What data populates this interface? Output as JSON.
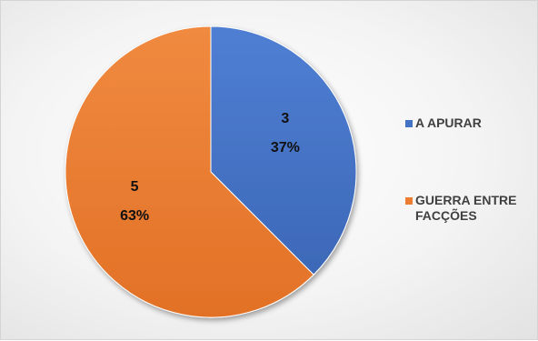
{
  "chart_data": {
    "type": "pie",
    "title": "",
    "categories": [
      "A APURAR",
      "GUERRA ENTRE FACÇÕES"
    ],
    "values": [
      3,
      5
    ],
    "labels": [
      {
        "value": "3",
        "percent": "37%"
      },
      {
        "value": "5",
        "percent": "63%"
      }
    ],
    "colors": [
      "#4472c4",
      "#ed7d31"
    ],
    "legend_position": "right"
  },
  "legend": {
    "items": [
      {
        "label": "A APURAR",
        "color": "#4472c4"
      },
      {
        "label": "GUERRA ENTRE FACÇÕES",
        "color": "#ed7d31"
      }
    ]
  }
}
